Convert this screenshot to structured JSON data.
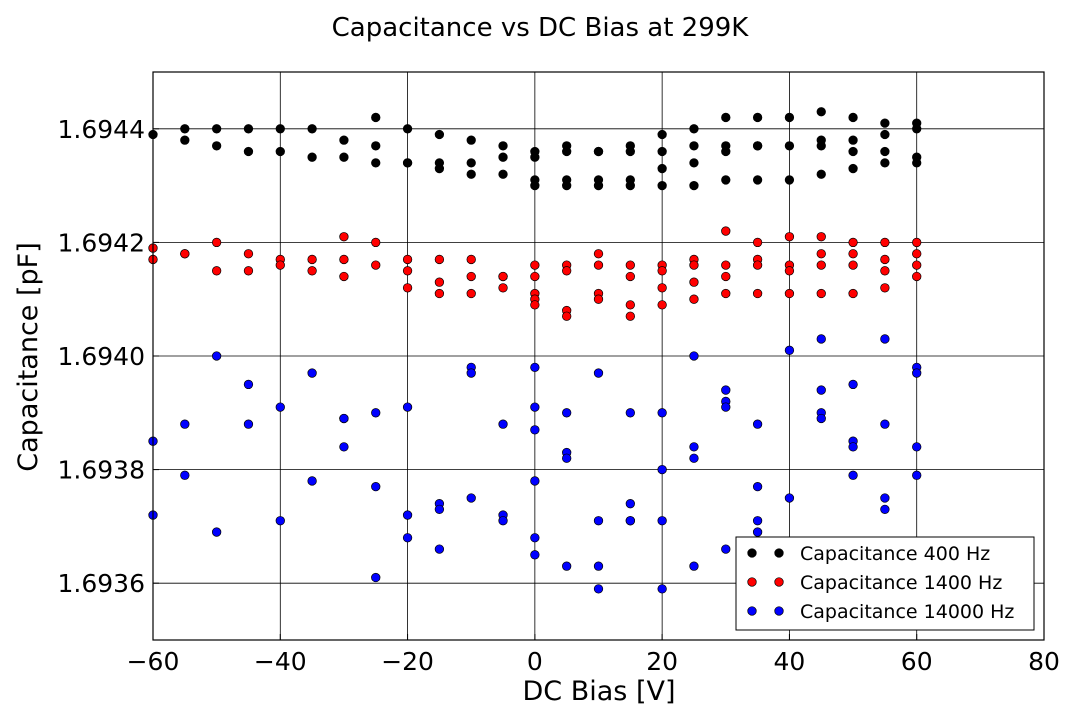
{
  "chart_data": {
    "type": "scatter",
    "title": "Capacitance vs DC Bias at 299K",
    "xlabel": "DC Bias [V]",
    "ylabel": "Capacitance [pF]",
    "xlim": [
      -60,
      80
    ],
    "ylim": [
      1.6935,
      1.6945
    ],
    "x_ticks": [
      -60,
      -40,
      -20,
      0,
      20,
      40,
      60,
      80
    ],
    "x_tick_labels": [
      "−60",
      "−40",
      "−20",
      "0",
      "20",
      "40",
      "60",
      "80"
    ],
    "y_ticks": [
      1.6936,
      1.6938,
      1.694,
      1.6942,
      1.6944
    ],
    "y_tick_labels": [
      "1.6936",
      "1.6938",
      "1.6940",
      "1.6942",
      "1.6944"
    ],
    "grid": true,
    "legend_position": "lower-right",
    "series": [
      {
        "name": "Capacitance 400 Hz",
        "color": "#000000",
        "points": [
          [
            -60,
            1.69439
          ],
          [
            -55,
            1.6944
          ],
          [
            -55,
            1.69438
          ],
          [
            -50,
            1.6944
          ],
          [
            -50,
            1.69437
          ],
          [
            -45,
            1.6944
          ],
          [
            -45,
            1.69436
          ],
          [
            -40,
            1.6944
          ],
          [
            -40,
            1.69436
          ],
          [
            -35,
            1.6944
          ],
          [
            -35,
            1.69435
          ],
          [
            -30,
            1.69438
          ],
          [
            -30,
            1.69435
          ],
          [
            -25,
            1.69442
          ],
          [
            -25,
            1.69437
          ],
          [
            -25,
            1.69434
          ],
          [
            -20,
            1.6944
          ],
          [
            -20,
            1.69434
          ],
          [
            -20,
            1.69434
          ],
          [
            -15,
            1.69439
          ],
          [
            -15,
            1.69434
          ],
          [
            -15,
            1.69433
          ],
          [
            -10,
            1.69438
          ],
          [
            -10,
            1.69434
          ],
          [
            -10,
            1.69432
          ],
          [
            -5,
            1.69437
          ],
          [
            -5,
            1.69435
          ],
          [
            -5,
            1.69432
          ],
          [
            0,
            1.69436
          ],
          [
            0,
            1.69435
          ],
          [
            0,
            1.69431
          ],
          [
            0,
            1.6943
          ],
          [
            5,
            1.69437
          ],
          [
            5,
            1.69436
          ],
          [
            5,
            1.69431
          ],
          [
            5,
            1.6943
          ],
          [
            10,
            1.69436
          ],
          [
            10,
            1.69436
          ],
          [
            10,
            1.69431
          ],
          [
            10,
            1.6943
          ],
          [
            15,
            1.69437
          ],
          [
            15,
            1.69436
          ],
          [
            15,
            1.69431
          ],
          [
            15,
            1.6943
          ],
          [
            20,
            1.69439
          ],
          [
            20,
            1.69436
          ],
          [
            20,
            1.69433
          ],
          [
            20,
            1.6943
          ],
          [
            25,
            1.6944
          ],
          [
            25,
            1.69437
          ],
          [
            25,
            1.69434
          ],
          [
            25,
            1.6943
          ],
          [
            30,
            1.69442
          ],
          [
            30,
            1.69437
          ],
          [
            30,
            1.69436
          ],
          [
            30,
            1.69431
          ],
          [
            35,
            1.69442
          ],
          [
            35,
            1.69437
          ],
          [
            35,
            1.69437
          ],
          [
            35,
            1.69431
          ],
          [
            40,
            1.69442
          ],
          [
            40,
            1.69437
          ],
          [
            40,
            1.69431
          ],
          [
            45,
            1.69443
          ],
          [
            45,
            1.69438
          ],
          [
            45,
            1.69437
          ],
          [
            45,
            1.69432
          ],
          [
            50,
            1.69442
          ],
          [
            50,
            1.69438
          ],
          [
            50,
            1.69436
          ],
          [
            50,
            1.69433
          ],
          [
            55,
            1.69441
          ],
          [
            55,
            1.69439
          ],
          [
            55,
            1.69436
          ],
          [
            55,
            1.69434
          ],
          [
            60,
            1.69441
          ],
          [
            60,
            1.6944
          ],
          [
            60,
            1.69435
          ],
          [
            60,
            1.69434
          ]
        ]
      },
      {
        "name": "Capacitance 1400 Hz",
        "color": "#ff0000",
        "points": [
          [
            -60,
            1.69419
          ],
          [
            -60,
            1.69417
          ],
          [
            -55,
            1.69418
          ],
          [
            -55,
            1.69418
          ],
          [
            -50,
            1.6942
          ],
          [
            -50,
            1.69415
          ],
          [
            -45,
            1.69418
          ],
          [
            -45,
            1.69415
          ],
          [
            -40,
            1.69417
          ],
          [
            -40,
            1.69416
          ],
          [
            -35,
            1.69417
          ],
          [
            -35,
            1.69415
          ],
          [
            -30,
            1.69421
          ],
          [
            -30,
            1.69417
          ],
          [
            -30,
            1.69414
          ],
          [
            -25,
            1.6942
          ],
          [
            -25,
            1.69416
          ],
          [
            -20,
            1.69417
          ],
          [
            -20,
            1.69415
          ],
          [
            -20,
            1.69412
          ],
          [
            -15,
            1.69417
          ],
          [
            -15,
            1.69413
          ],
          [
            -15,
            1.69411
          ],
          [
            -10,
            1.69417
          ],
          [
            -10,
            1.69414
          ],
          [
            -10,
            1.69411
          ],
          [
            -5,
            1.69414
          ],
          [
            -5,
            1.69414
          ],
          [
            -5,
            1.69412
          ],
          [
            0,
            1.69416
          ],
          [
            0,
            1.69414
          ],
          [
            0,
            1.69411
          ],
          [
            0,
            1.6941
          ],
          [
            0,
            1.69409
          ],
          [
            5,
            1.69416
          ],
          [
            5,
            1.69415
          ],
          [
            5,
            1.69408
          ],
          [
            5,
            1.69407
          ],
          [
            10,
            1.69418
          ],
          [
            10,
            1.69416
          ],
          [
            10,
            1.69411
          ],
          [
            10,
            1.6941
          ],
          [
            15,
            1.69416
          ],
          [
            15,
            1.69414
          ],
          [
            15,
            1.69409
          ],
          [
            15,
            1.69407
          ],
          [
            20,
            1.69416
          ],
          [
            20,
            1.69415
          ],
          [
            20,
            1.69412
          ],
          [
            20,
            1.69409
          ],
          [
            25,
            1.69417
          ],
          [
            25,
            1.69416
          ],
          [
            25,
            1.69413
          ],
          [
            25,
            1.6941
          ],
          [
            30,
            1.69422
          ],
          [
            30,
            1.69416
          ],
          [
            30,
            1.69414
          ],
          [
            30,
            1.69411
          ],
          [
            35,
            1.6942
          ],
          [
            35,
            1.69417
          ],
          [
            35,
            1.69416
          ],
          [
            35,
            1.69411
          ],
          [
            40,
            1.69421
          ],
          [
            40,
            1.69416
          ],
          [
            40,
            1.69415
          ],
          [
            40,
            1.69411
          ],
          [
            45,
            1.69421
          ],
          [
            45,
            1.69418
          ],
          [
            45,
            1.69416
          ],
          [
            45,
            1.69411
          ],
          [
            50,
            1.6942
          ],
          [
            50,
            1.69418
          ],
          [
            50,
            1.69416
          ],
          [
            50,
            1.69411
          ],
          [
            55,
            1.6942
          ],
          [
            55,
            1.69417
          ],
          [
            55,
            1.69415
          ],
          [
            55,
            1.69412
          ],
          [
            60,
            1.6942
          ],
          [
            60,
            1.69418
          ],
          [
            60,
            1.69416
          ],
          [
            60,
            1.69414
          ]
        ]
      },
      {
        "name": "Capacitance 14000 Hz",
        "color": "#0000ff",
        "points": [
          [
            -60,
            1.69385
          ],
          [
            -60,
            1.69372
          ],
          [
            -55,
            1.69388
          ],
          [
            -55,
            1.69379
          ],
          [
            -50,
            1.694
          ],
          [
            -50,
            1.69369
          ],
          [
            -45,
            1.69395
          ],
          [
            -45,
            1.69388
          ],
          [
            -40,
            1.69391
          ],
          [
            -40,
            1.69371
          ],
          [
            -35,
            1.69397
          ],
          [
            -35,
            1.69378
          ],
          [
            -30,
            1.69389
          ],
          [
            -30,
            1.69389
          ],
          [
            -30,
            1.69384
          ],
          [
            -25,
            1.6939
          ],
          [
            -25,
            1.69377
          ],
          [
            -25,
            1.69361
          ],
          [
            -20,
            1.69391
          ],
          [
            -20,
            1.69372
          ],
          [
            -20,
            1.69368
          ],
          [
            -15,
            1.69374
          ],
          [
            -15,
            1.69373
          ],
          [
            -15,
            1.69366
          ],
          [
            -10,
            1.69398
          ],
          [
            -10,
            1.69397
          ],
          [
            -10,
            1.69375
          ],
          [
            -5,
            1.69388
          ],
          [
            -5,
            1.69372
          ],
          [
            -5,
            1.69371
          ],
          [
            0,
            1.69398
          ],
          [
            0,
            1.69391
          ],
          [
            0,
            1.69387
          ],
          [
            0,
            1.69378
          ],
          [
            0,
            1.69368
          ],
          [
            0,
            1.69365
          ],
          [
            5,
            1.6939
          ],
          [
            5,
            1.69383
          ],
          [
            5,
            1.69382
          ],
          [
            5,
            1.69363
          ],
          [
            10,
            1.69397
          ],
          [
            10,
            1.69371
          ],
          [
            10,
            1.69363
          ],
          [
            10,
            1.69359
          ],
          [
            15,
            1.6939
          ],
          [
            15,
            1.69374
          ],
          [
            15,
            1.69371
          ],
          [
            15,
            1.69371
          ],
          [
            20,
            1.6939
          ],
          [
            20,
            1.6938
          ],
          [
            20,
            1.69371
          ],
          [
            20,
            1.69359
          ],
          [
            25,
            1.694
          ],
          [
            25,
            1.69384
          ],
          [
            25,
            1.69382
          ],
          [
            25,
            1.69363
          ],
          [
            30,
            1.69394
          ],
          [
            30,
            1.69392
          ],
          [
            30,
            1.69391
          ],
          [
            30,
            1.69366
          ],
          [
            35,
            1.69388
          ],
          [
            35,
            1.69377
          ],
          [
            35,
            1.69371
          ],
          [
            35,
            1.69369
          ],
          [
            40,
            1.69401
          ],
          [
            40,
            1.69375
          ],
          [
            45,
            1.69403
          ],
          [
            45,
            1.69394
          ],
          [
            45,
            1.6939
          ],
          [
            45,
            1.69389
          ],
          [
            50,
            1.69395
          ],
          [
            50,
            1.69385
          ],
          [
            50,
            1.69384
          ],
          [
            50,
            1.69379
          ],
          [
            55,
            1.69403
          ],
          [
            55,
            1.69388
          ],
          [
            55,
            1.69375
          ],
          [
            55,
            1.69373
          ],
          [
            60,
            1.69398
          ],
          [
            60,
            1.69397
          ],
          [
            60,
            1.69384
          ],
          [
            60,
            1.69379
          ]
        ]
      }
    ]
  }
}
